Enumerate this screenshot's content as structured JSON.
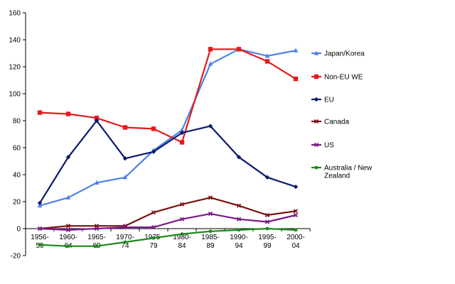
{
  "chart_data": {
    "type": "line",
    "title": "",
    "xlabel": "",
    "ylabel": "",
    "categories": [
      "1956-59",
      "1960-64",
      "1965-69",
      "1970-74",
      "1975-79",
      "1980-84",
      "1985-89",
      "1990-94",
      "1995-99",
      "2000-04"
    ],
    "ylim": [
      -20,
      160
    ],
    "yticks": [
      -20,
      0,
      20,
      40,
      60,
      80,
      100,
      120,
      140,
      160
    ],
    "grid": false,
    "legend_position": "right",
    "series": [
      {
        "name": "Japan/Korea",
        "color": "#4f81e8",
        "marker": "triangle",
        "values": [
          17,
          23,
          34,
          38,
          58,
          73,
          122,
          133,
          128,
          132
        ]
      },
      {
        "name": "Non-EU WE",
        "color": "#e41a1c",
        "marker": "square",
        "values": [
          86,
          85,
          82,
          75,
          74,
          64,
          133,
          133,
          124,
          111
        ]
      },
      {
        "name": "EU",
        "color": "#0c1a6b",
        "marker": "diamond",
        "values": [
          19,
          53,
          80,
          52,
          57,
          71,
          76,
          53,
          38,
          31
        ]
      },
      {
        "name": "Canada",
        "color": "#7a1010",
        "marker": "cross",
        "values": [
          0,
          2,
          2,
          2,
          12,
          18,
          23,
          17,
          10,
          13
        ]
      },
      {
        "name": "US",
        "color": "#7b1a88",
        "marker": "cross",
        "values": [
          0,
          -1,
          0,
          1,
          1,
          7,
          11,
          7,
          5,
          10
        ]
      },
      {
        "name": "Australia / New Zealand",
        "color": "#1a8a1a",
        "marker": "circle",
        "values": [
          -12,
          -13,
          -13,
          -10,
          -7,
          -4,
          -2,
          -1,
          0,
          -1
        ]
      }
    ]
  }
}
